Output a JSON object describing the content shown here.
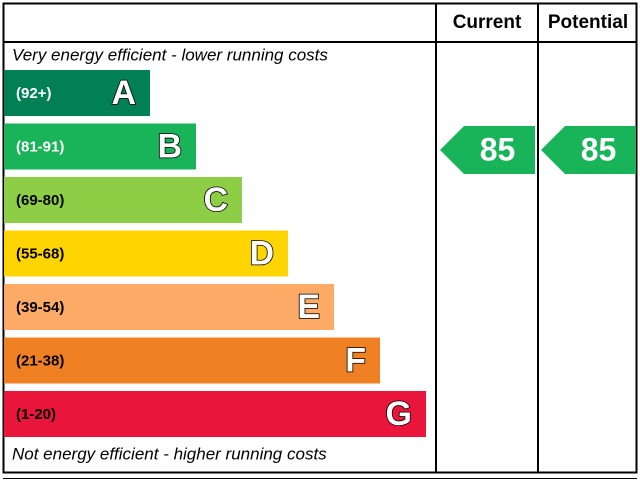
{
  "header": {
    "current": "Current",
    "potential": "Potential"
  },
  "top_note": "Very energy efficient - lower running costs",
  "bottom_note": "Not energy efficient - higher running costs",
  "bands": [
    {
      "range": "(92+)",
      "letter": "A",
      "color": "#008054"
    },
    {
      "range": "(81-91)",
      "letter": "B",
      "color": "#19b459"
    },
    {
      "range": "(69-80)",
      "letter": "C",
      "color": "#8dce46"
    },
    {
      "range": "(55-68)",
      "letter": "D",
      "color": "#ffd500"
    },
    {
      "range": "(39-54)",
      "letter": "E",
      "color": "#fcaa65"
    },
    {
      "range": "(21-38)",
      "letter": "F",
      "color": "#ef8023"
    },
    {
      "range": "(1-20)",
      "letter": "G",
      "color": "#e9153b"
    }
  ],
  "current": {
    "value": "85",
    "color": "#19b459"
  },
  "potential": {
    "value": "85",
    "color": "#19b459"
  }
}
